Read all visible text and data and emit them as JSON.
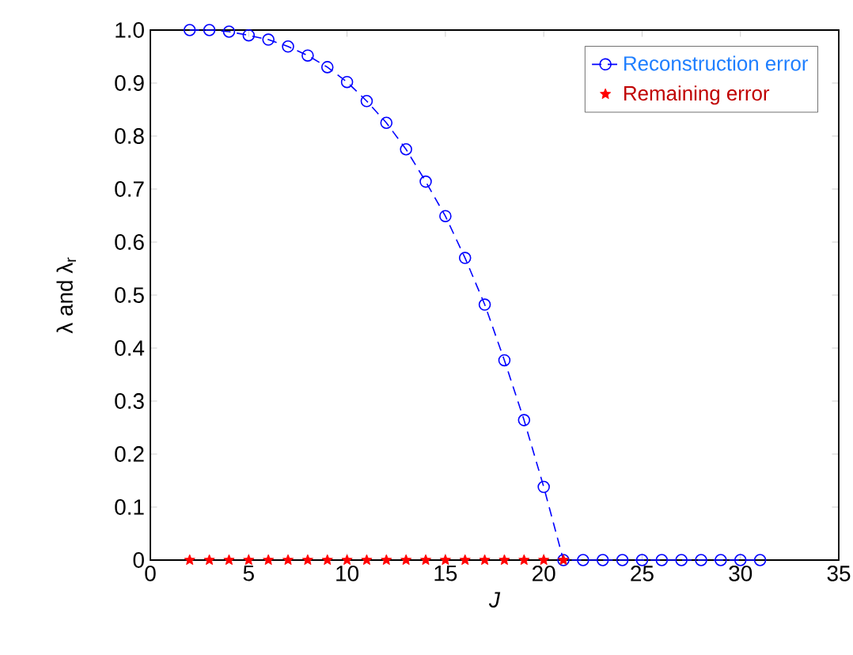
{
  "chart_data": {
    "type": "line",
    "xlabel": "J",
    "ylabel": "λ and λ$_{r}$",
    "xlim": [
      0,
      35
    ],
    "ylim": [
      0,
      1
    ],
    "xticks": [
      0,
      5,
      10,
      15,
      20,
      25,
      30,
      35
    ],
    "yticks": [
      {
        "value": 0,
        "label": "0"
      },
      0.1,
      0.2,
      0.3,
      0.4,
      0.5,
      0.6,
      0.7,
      0.8,
      0.9,
      {
        "value": 1,
        "label": "1.0"
      }
    ],
    "grid": false,
    "legend": "top right",
    "series": [
      {
        "name": "Reconstruction error",
        "color": "#0000ff",
        "marker": "circle",
        "line_style": "dashed",
        "x": [
          2,
          3,
          4,
          5,
          6,
          7,
          8,
          9,
          10,
          11,
          12,
          13,
          14,
          15,
          16,
          17,
          18,
          19,
          20,
          21,
          22,
          23,
          24,
          25,
          26,
          27,
          28,
          29,
          30,
          31
        ],
        "values": [
          1.0,
          1.0,
          0.997,
          0.99,
          0.982,
          0.969,
          0.952,
          0.93,
          0.902,
          0.866,
          0.825,
          0.775,
          0.714,
          0.649,
          0.57,
          0.482,
          0.377,
          0.264,
          0.138,
          0,
          0,
          0,
          0,
          0,
          0,
          0,
          0,
          0,
          0,
          0
        ]
      },
      {
        "name": "Remaining error",
        "color": "#ff0000",
        "type": "scatter",
        "marker": "star",
        "x": [
          2,
          3,
          4,
          5,
          6,
          7,
          8,
          9,
          10,
          11,
          12,
          13,
          14,
          15,
          16,
          17,
          18,
          19,
          20,
          21
        ],
        "values": [
          0,
          0,
          0,
          0,
          0,
          0,
          0,
          0,
          0,
          0,
          0,
          0,
          0,
          0,
          0,
          0,
          0,
          0,
          0,
          0
        ]
      }
    ]
  }
}
